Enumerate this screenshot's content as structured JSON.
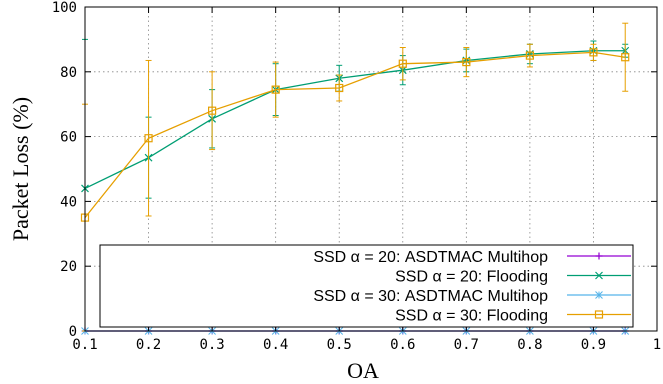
{
  "chart_data": {
    "type": "line",
    "title": "",
    "xlabel": "OA",
    "ylabel": "Packet Loss (%)",
    "xlim": [
      0.1,
      1.0
    ],
    "ylim": [
      0,
      100
    ],
    "x_ticks": [
      "0.1",
      "0.2",
      "0.3",
      "0.4",
      "0.5",
      "0.6",
      "0.7",
      "0.8",
      "0.9",
      "1"
    ],
    "y_ticks": [
      "0",
      "20",
      "40",
      "60",
      "80",
      "100"
    ],
    "grid": true,
    "legend_placement": "bottom-right",
    "series": [
      {
        "name": "SSD α = 20: ASDTMAC Multihop",
        "color": "#9400d3",
        "marker": "plus",
        "x": [
          0.1,
          0.2,
          0.3,
          0.4,
          0.5,
          0.6,
          0.7,
          0.8,
          0.9,
          0.95
        ],
        "y": [
          0,
          0,
          0,
          0,
          0,
          0,
          0,
          0,
          0,
          0
        ],
        "err": [
          0,
          0,
          0,
          0,
          0,
          0,
          0,
          0,
          0,
          0
        ]
      },
      {
        "name": "SSD α = 20: Flooding",
        "color": "#009e73",
        "marker": "cross",
        "x": [
          0.1,
          0.2,
          0.3,
          0.4,
          0.5,
          0.6,
          0.7,
          0.8,
          0.9,
          0.95
        ],
        "y": [
          44,
          53.5,
          65.5,
          74.5,
          78,
          80.5,
          83.5,
          85.5,
          86.5,
          86.5
        ],
        "err": [
          46,
          12.5,
          9,
          8,
          4,
          4.5,
          3.5,
          3,
          3,
          2
        ]
      },
      {
        "name": "SSD α = 30: ASDTMAC Multihop",
        "color": "#56b4e9",
        "marker": "star",
        "x": [
          0.1,
          0.2,
          0.3,
          0.4,
          0.5,
          0.6,
          0.7,
          0.8,
          0.9,
          0.95
        ],
        "y": [
          0,
          0,
          0,
          0,
          0,
          0,
          0,
          0,
          0,
          0
        ],
        "err": [
          0,
          0,
          0,
          0,
          0,
          0,
          0,
          0,
          0,
          0
        ]
      },
      {
        "name": "SSD α = 30: Flooding",
        "color": "#e69f00",
        "marker": "square",
        "x": [
          0.1,
          0.2,
          0.3,
          0.4,
          0.5,
          0.6,
          0.7,
          0.8,
          0.9,
          0.95
        ],
        "y": [
          35,
          59.5,
          68,
          74.5,
          75,
          82.5,
          83,
          85,
          86,
          84.5
        ],
        "err": [
          35,
          24,
          12,
          8.5,
          4,
          5,
          4.5,
          3.5,
          2.5,
          10.5
        ]
      }
    ]
  }
}
